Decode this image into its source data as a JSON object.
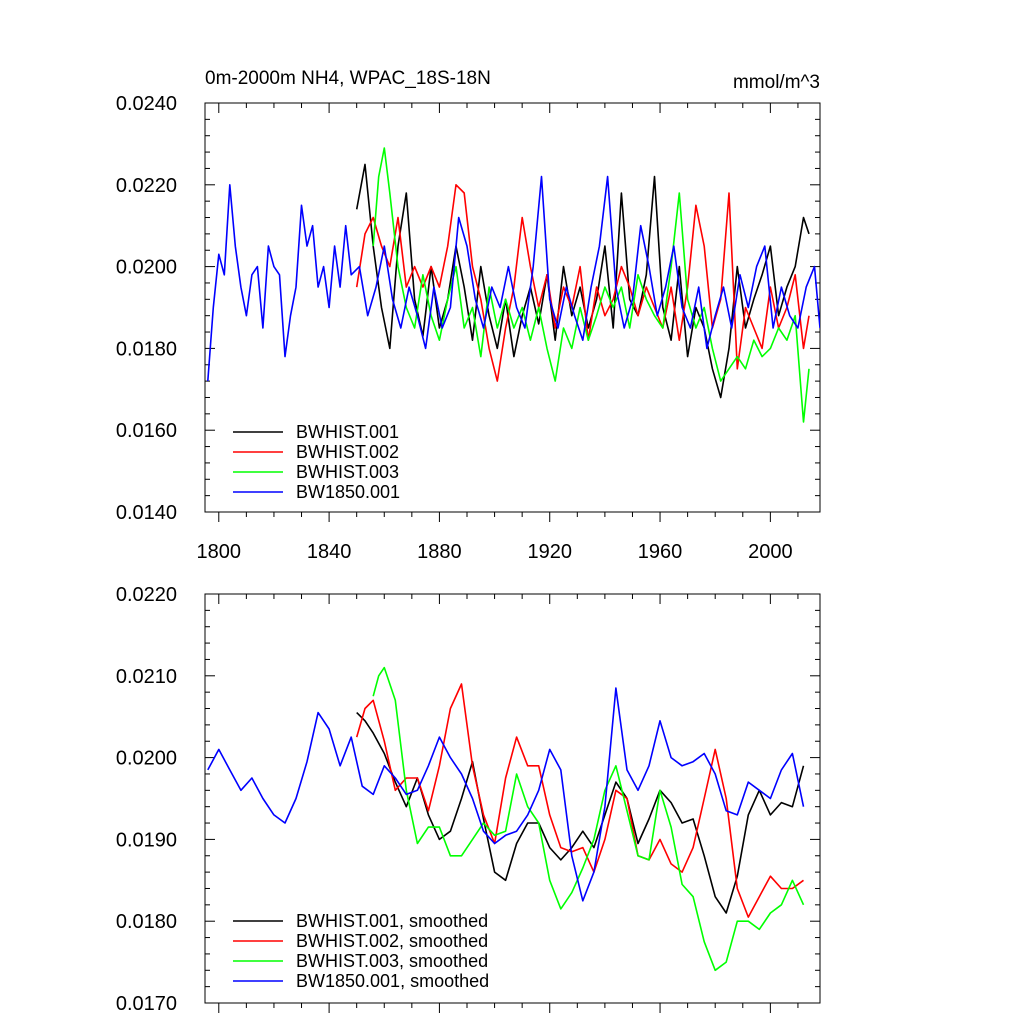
{
  "figure": {
    "title_left": "0m-2000m NH4, WPAC_18S-18N",
    "title_right": "mmol/m^3"
  },
  "chart_data": [
    {
      "type": "line",
      "xlim": [
        1795,
        2018
      ],
      "ylim": [
        0.014,
        0.024
      ],
      "xticks": [
        1800,
        1840,
        1880,
        1920,
        1960,
        2000
      ],
      "yticks": [
        0.014,
        0.016,
        0.018,
        0.02,
        0.022,
        0.024
      ],
      "ytick_labels": [
        "0.0140",
        "0.0160",
        "0.0180",
        "0.0200",
        "0.0220",
        "0.0240"
      ],
      "legend_position": "bottom-left",
      "series": [
        {
          "name": "BWHIST.001",
          "color": "#000000",
          "x": [
            1850,
            1853,
            1856,
            1859,
            1862,
            1865,
            1868,
            1871,
            1874,
            1877,
            1880,
            1883,
            1886,
            1889,
            1892,
            1895,
            1898,
            1901,
            1904,
            1907,
            1910,
            1913,
            1916,
            1919,
            1922,
            1925,
            1928,
            1931,
            1934,
            1937,
            1940,
            1943,
            1946,
            1949,
            1952,
            1955,
            1958,
            1961,
            1964,
            1967,
            1970,
            1973,
            1976,
            1979,
            1982,
            1985,
            1988,
            1991,
            1994,
            1997,
            2000,
            2003,
            2006,
            2009,
            2012,
            2014
          ],
          "y": [
            0.0214,
            0.0225,
            0.0205,
            0.019,
            0.018,
            0.0205,
            0.0218,
            0.0192,
            0.0183,
            0.02,
            0.0185,
            0.0192,
            0.0205,
            0.0195,
            0.0182,
            0.02,
            0.0188,
            0.018,
            0.0192,
            0.0178,
            0.0188,
            0.0195,
            0.0186,
            0.0198,
            0.0182,
            0.02,
            0.0188,
            0.0195,
            0.0185,
            0.0192,
            0.0205,
            0.0185,
            0.0218,
            0.0192,
            0.0188,
            0.0198,
            0.0222,
            0.019,
            0.0182,
            0.02,
            0.0178,
            0.019,
            0.0185,
            0.0175,
            0.0168,
            0.018,
            0.02,
            0.0185,
            0.0192,
            0.0198,
            0.0205,
            0.0188,
            0.0195,
            0.02,
            0.0212,
            0.0208
          ]
        },
        {
          "name": "BWHIST.002",
          "color": "#ff0000",
          "x": [
            1850,
            1853,
            1856,
            1859,
            1862,
            1865,
            1868,
            1871,
            1874,
            1877,
            1880,
            1883,
            1886,
            1889,
            1892,
            1895,
            1898,
            1901,
            1904,
            1907,
            1910,
            1913,
            1916,
            1919,
            1922,
            1925,
            1928,
            1931,
            1934,
            1937,
            1940,
            1943,
            1946,
            1949,
            1952,
            1955,
            1958,
            1961,
            1964,
            1967,
            1970,
            1973,
            1976,
            1979,
            1982,
            1985,
            1988,
            1991,
            1994,
            1997,
            2000,
            2003,
            2006,
            2009,
            2012,
            2014
          ],
          "y": [
            0.0195,
            0.0208,
            0.0212,
            0.0205,
            0.02,
            0.0212,
            0.0195,
            0.02,
            0.0195,
            0.02,
            0.0195,
            0.0205,
            0.022,
            0.0218,
            0.02,
            0.0192,
            0.018,
            0.0172,
            0.0185,
            0.0195,
            0.0212,
            0.02,
            0.019,
            0.0198,
            0.0185,
            0.0195,
            0.019,
            0.02,
            0.0182,
            0.0195,
            0.0188,
            0.0192,
            0.02,
            0.0195,
            0.0188,
            0.0195,
            0.019,
            0.0185,
            0.0195,
            0.0182,
            0.0195,
            0.0215,
            0.0205,
            0.0185,
            0.0192,
            0.0218,
            0.0175,
            0.019,
            0.0185,
            0.018,
            0.0195,
            0.0185,
            0.019,
            0.0198,
            0.018,
            0.0188
          ]
        },
        {
          "name": "BWHIST.003",
          "color": "#00ff00",
          "x": [
            1856,
            1858,
            1860,
            1862,
            1865,
            1868,
            1871,
            1874,
            1877,
            1880,
            1883,
            1886,
            1889,
            1892,
            1895,
            1898,
            1901,
            1904,
            1907,
            1910,
            1913,
            1916,
            1919,
            1922,
            1925,
            1928,
            1931,
            1934,
            1937,
            1940,
            1943,
            1946,
            1949,
            1952,
            1955,
            1958,
            1961,
            1964,
            1967,
            1970,
            1973,
            1976,
            1979,
            1982,
            1985,
            1988,
            1991,
            1994,
            1997,
            2000,
            2003,
            2006,
            2009,
            2012,
            2014
          ],
          "y": [
            0.0205,
            0.0222,
            0.0229,
            0.0218,
            0.02,
            0.019,
            0.0185,
            0.0198,
            0.0188,
            0.0182,
            0.0192,
            0.02,
            0.0185,
            0.019,
            0.0178,
            0.0195,
            0.0185,
            0.0192,
            0.0185,
            0.019,
            0.0182,
            0.019,
            0.018,
            0.0172,
            0.0185,
            0.018,
            0.019,
            0.0182,
            0.0188,
            0.0195,
            0.019,
            0.0195,
            0.0185,
            0.0198,
            0.0192,
            0.0188,
            0.0185,
            0.02,
            0.0218,
            0.0192,
            0.0185,
            0.019,
            0.018,
            0.0172,
            0.0175,
            0.0178,
            0.0175,
            0.0182,
            0.0178,
            0.018,
            0.0185,
            0.0182,
            0.0188,
            0.0162,
            0.0175
          ]
        },
        {
          "name": "BW1850.001",
          "color": "#0000ff",
          "x": [
            1796,
            1798,
            1800,
            1802,
            1804,
            1806,
            1808,
            1810,
            1812,
            1814,
            1816,
            1818,
            1820,
            1822,
            1824,
            1826,
            1828,
            1830,
            1832,
            1834,
            1836,
            1838,
            1840,
            1842,
            1844,
            1846,
            1848,
            1851,
            1854,
            1857,
            1860,
            1863,
            1866,
            1869,
            1872,
            1875,
            1878,
            1881,
            1884,
            1887,
            1890,
            1893,
            1896,
            1899,
            1902,
            1905,
            1908,
            1911,
            1914,
            1917,
            1920,
            1923,
            1926,
            1929,
            1932,
            1935,
            1938,
            1941,
            1944,
            1947,
            1950,
            1953,
            1956,
            1959,
            1962,
            1965,
            1968,
            1971,
            1974,
            1977,
            1980,
            1983,
            1986,
            1989,
            1992,
            1995,
            1998,
            2001,
            2004,
            2007,
            2010,
            2013,
            2016,
            2018
          ],
          "y": [
            0.0172,
            0.019,
            0.0203,
            0.0198,
            0.022,
            0.0205,
            0.0195,
            0.0188,
            0.0198,
            0.02,
            0.0185,
            0.0205,
            0.02,
            0.0198,
            0.0178,
            0.0188,
            0.0195,
            0.0215,
            0.0205,
            0.021,
            0.0195,
            0.02,
            0.019,
            0.0205,
            0.0195,
            0.021,
            0.0198,
            0.02,
            0.0188,
            0.0195,
            0.0205,
            0.0192,
            0.0185,
            0.0195,
            0.0188,
            0.018,
            0.0195,
            0.0185,
            0.019,
            0.0212,
            0.0205,
            0.0192,
            0.0185,
            0.0195,
            0.019,
            0.02,
            0.019,
            0.0185,
            0.02,
            0.0222,
            0.0192,
            0.0185,
            0.0195,
            0.0188,
            0.0182,
            0.0195,
            0.0205,
            0.0222,
            0.0195,
            0.0185,
            0.0192,
            0.021,
            0.02,
            0.0188,
            0.0195,
            0.0205,
            0.019,
            0.0185,
            0.0195,
            0.018,
            0.0188,
            0.0195,
            0.0185,
            0.0198,
            0.019,
            0.02,
            0.0205,
            0.0185,
            0.0195,
            0.0188,
            0.0185,
            0.0195,
            0.02,
            0.0185
          ]
        }
      ]
    },
    {
      "type": "line",
      "xlim": [
        1795,
        2018
      ],
      "ylim": [
        0.017,
        0.022
      ],
      "xticks": [
        1800,
        1840,
        1880,
        1920,
        1960,
        2000
      ],
      "yticks": [
        0.017,
        0.018,
        0.019,
        0.02,
        0.021,
        0.022
      ],
      "ytick_labels": [
        "0.0170",
        "0.0180",
        "0.0190",
        "0.0200",
        "0.0210",
        "0.0220"
      ],
      "legend_position": "bottom-left",
      "series": [
        {
          "name": "BWHIST.001, smoothed",
          "color": "#000000",
          "x": [
            1850,
            1853,
            1856,
            1860,
            1864,
            1868,
            1872,
            1876,
            1880,
            1884,
            1888,
            1892,
            1896,
            1900,
            1904,
            1908,
            1912,
            1916,
            1920,
            1924,
            1928,
            1932,
            1936,
            1940,
            1944,
            1948,
            1952,
            1956,
            1960,
            1964,
            1968,
            1972,
            1976,
            1980,
            1984,
            1988,
            1992,
            1996,
            2000,
            2004,
            2008,
            2012
          ],
          "y": [
            0.02055,
            0.02045,
            0.0203,
            0.02005,
            0.0197,
            0.0194,
            0.01975,
            0.0193,
            0.019,
            0.0191,
            0.0195,
            0.01995,
            0.01925,
            0.0186,
            0.0185,
            0.01895,
            0.0192,
            0.0192,
            0.0189,
            0.01875,
            0.0189,
            0.0191,
            0.0189,
            0.0193,
            0.0197,
            0.0195,
            0.01895,
            0.01925,
            0.0196,
            0.01945,
            0.0192,
            0.01925,
            0.0188,
            0.0183,
            0.0181,
            0.01855,
            0.0193,
            0.0196,
            0.0193,
            0.01945,
            0.0194,
            0.0199
          ]
        },
        {
          "name": "BWHIST.002, smoothed",
          "color": "#ff0000",
          "x": [
            1850,
            1853,
            1856,
            1860,
            1864,
            1868,
            1872,
            1876,
            1880,
            1884,
            1888,
            1892,
            1896,
            1900,
            1904,
            1908,
            1912,
            1916,
            1920,
            1924,
            1928,
            1932,
            1936,
            1940,
            1944,
            1948,
            1952,
            1956,
            1960,
            1964,
            1968,
            1972,
            1976,
            1980,
            1984,
            1988,
            1992,
            1996,
            2000,
            2004,
            2008,
            2012
          ],
          "y": [
            0.02025,
            0.0206,
            0.0207,
            0.0202,
            0.0196,
            0.01975,
            0.01975,
            0.01935,
            0.0199,
            0.0206,
            0.0209,
            0.0199,
            0.0193,
            0.01895,
            0.01975,
            0.02025,
            0.0199,
            0.0199,
            0.0193,
            0.0189,
            0.01885,
            0.0189,
            0.0186,
            0.019,
            0.0196,
            0.0195,
            0.0188,
            0.01875,
            0.019,
            0.0187,
            0.0186,
            0.0189,
            0.0195,
            0.0201,
            0.0195,
            0.0184,
            0.01805,
            0.0183,
            0.01855,
            0.0184,
            0.0184,
            0.0185
          ]
        },
        {
          "name": "BWHIST.003, smoothed",
          "color": "#00ff00",
          "x": [
            1856,
            1858,
            1860,
            1864,
            1868,
            1872,
            1876,
            1880,
            1884,
            1888,
            1892,
            1896,
            1900,
            1904,
            1908,
            1912,
            1916,
            1920,
            1924,
            1928,
            1932,
            1936,
            1940,
            1944,
            1948,
            1952,
            1956,
            1960,
            1964,
            1968,
            1972,
            1976,
            1980,
            1984,
            1988,
            1992,
            1996,
            2000,
            2004,
            2008,
            2012
          ],
          "y": [
            0.02075,
            0.021,
            0.0211,
            0.0207,
            0.0196,
            0.01895,
            0.01915,
            0.01915,
            0.0188,
            0.0188,
            0.019,
            0.0192,
            0.01905,
            0.0191,
            0.0198,
            0.0194,
            0.0192,
            0.0185,
            0.01815,
            0.01835,
            0.01865,
            0.019,
            0.0196,
            0.0199,
            0.01935,
            0.0188,
            0.01875,
            0.0196,
            0.01915,
            0.01845,
            0.0183,
            0.01775,
            0.0174,
            0.0175,
            0.018,
            0.018,
            0.0179,
            0.0181,
            0.0182,
            0.0185,
            0.0182
          ]
        },
        {
          "name": "BW1850.001, smoothed",
          "color": "#0000ff",
          "x": [
            1796,
            1800,
            1804,
            1808,
            1812,
            1816,
            1820,
            1824,
            1828,
            1832,
            1836,
            1840,
            1844,
            1848,
            1852,
            1856,
            1860,
            1864,
            1868,
            1872,
            1876,
            1880,
            1884,
            1888,
            1892,
            1896,
            1900,
            1904,
            1908,
            1912,
            1916,
            1920,
            1924,
            1928,
            1932,
            1936,
            1940,
            1944,
            1948,
            1952,
            1956,
            1960,
            1964,
            1968,
            1972,
            1976,
            1980,
            1984,
            1988,
            1992,
            1996,
            2000,
            2004,
            2008,
            2012
          ],
          "y": [
            0.01985,
            0.0201,
            0.01985,
            0.0196,
            0.01975,
            0.0195,
            0.0193,
            0.0192,
            0.0195,
            0.01995,
            0.02055,
            0.02035,
            0.0199,
            0.02025,
            0.01965,
            0.01955,
            0.0199,
            0.01975,
            0.01955,
            0.0196,
            0.0199,
            0.02025,
            0.02,
            0.0198,
            0.0195,
            0.0191,
            0.01895,
            0.01905,
            0.0191,
            0.0193,
            0.0196,
            0.0201,
            0.01985,
            0.0188,
            0.01825,
            0.0186,
            0.0194,
            0.02085,
            0.01985,
            0.0196,
            0.0199,
            0.02045,
            0.02,
            0.0199,
            0.01995,
            0.02005,
            0.0198,
            0.01935,
            0.0193,
            0.0197,
            0.0196,
            0.0195,
            0.01985,
            0.02005,
            0.0194
          ]
        }
      ]
    }
  ]
}
